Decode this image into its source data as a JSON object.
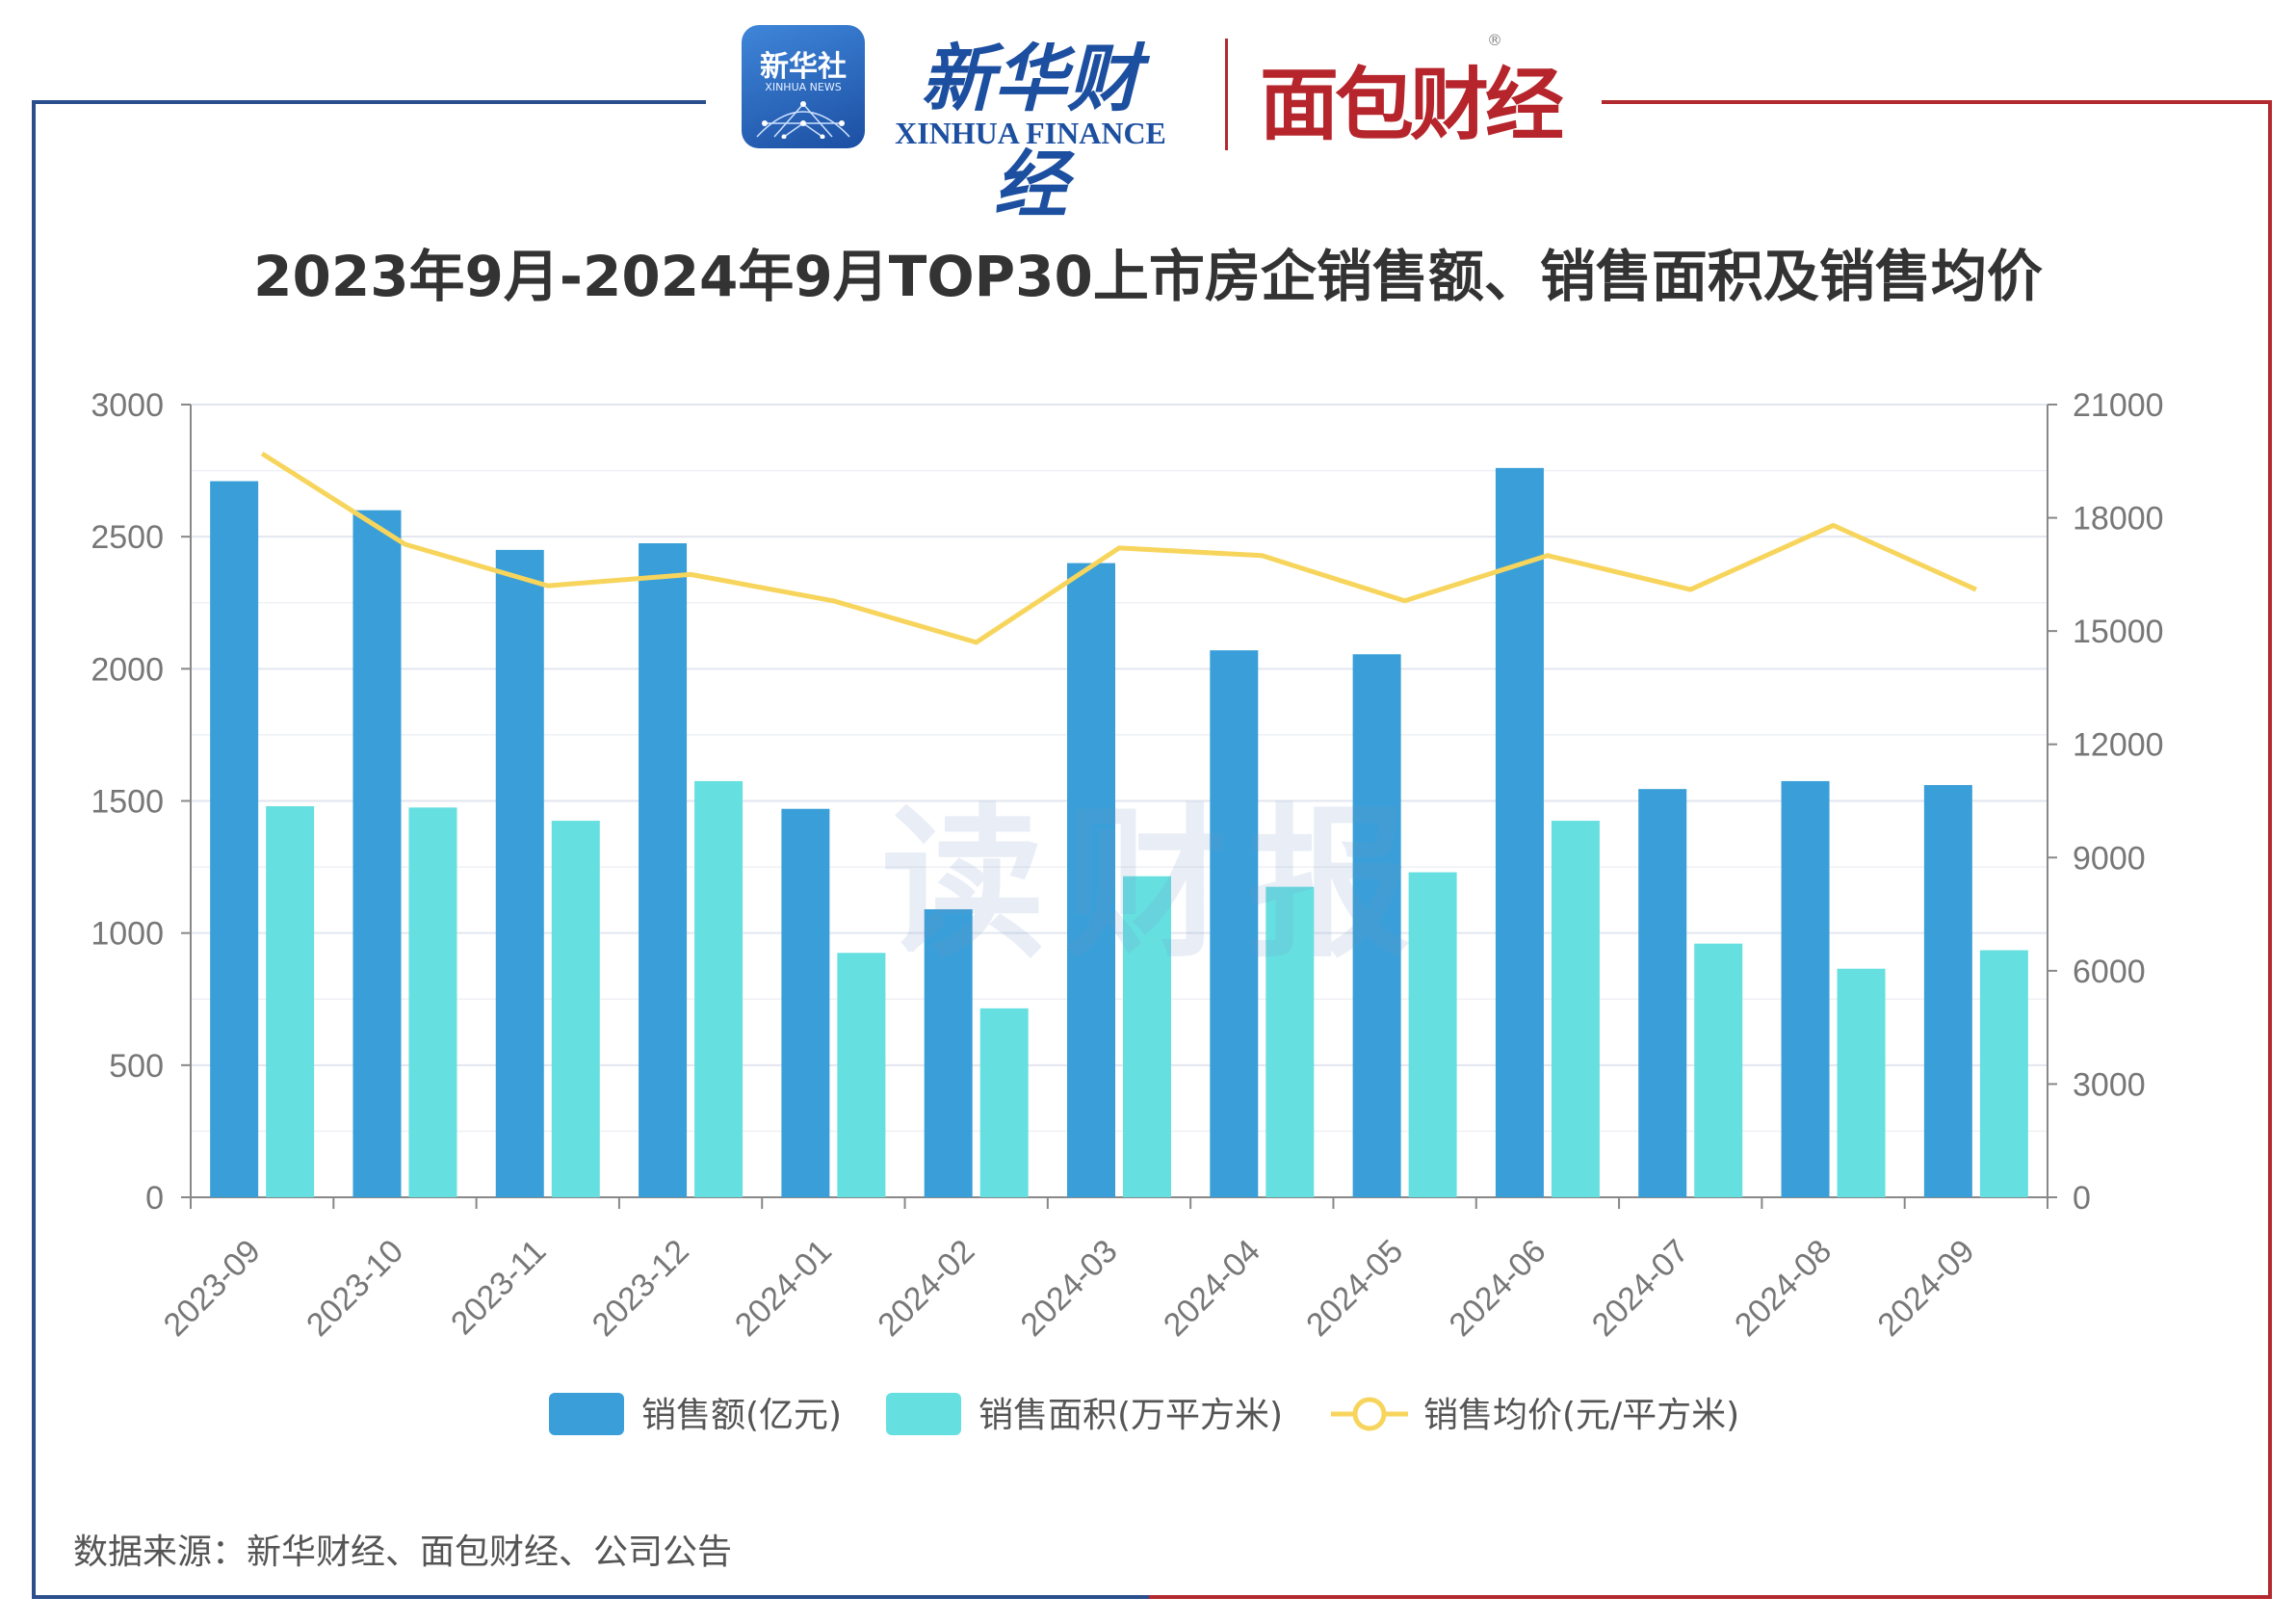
{
  "header": {
    "xinhua_badge": "新华社",
    "xinhua_badge_sub": "XINHUA NEWS",
    "xinhua_name": "新华财经",
    "xinhua_en": "XINHUA FINANCE",
    "mianbao_name": "面包财经",
    "registered_mark": "®"
  },
  "watermark": "读财报",
  "source": "数据来源：新华财经、面包财经、公司公告",
  "colors": {
    "sales_amount": "#3a9fd8",
    "sales_area": "#66dfe0",
    "avg_price": "#f7d55c",
    "frame_blue": "#2b4e8c",
    "frame_red": "#b22a2f"
  },
  "chart_data": {
    "type": "bar",
    "title": "2023年9月-2024年9月TOP30上市房企销售额、销售面积及销售均价",
    "categories": [
      "2023-09",
      "2023-10",
      "2023-11",
      "2023-12",
      "2024-01",
      "2024-02",
      "2024-03",
      "2024-04",
      "2024-05",
      "2024-06",
      "2024-07",
      "2024-08",
      "2024-09"
    ],
    "series": [
      {
        "name": "销售额(亿元)",
        "type": "bar",
        "axis": "left",
        "values": [
          2710,
          2600,
          2450,
          2475,
          1470,
          1090,
          2400,
          2070,
          2055,
          2760,
          1545,
          1575,
          1560
        ]
      },
      {
        "name": "销售面积(万平方米)",
        "type": "bar",
        "axis": "left",
        "values": [
          1480,
          1475,
          1425,
          1575,
          925,
          715,
          1215,
          1175,
          1230,
          1425,
          960,
          865,
          935
        ]
      },
      {
        "name": "销售均价(元/平方米)",
        "type": "line",
        "axis": "right",
        "values": [
          19700,
          17300,
          16200,
          16500,
          15800,
          14700,
          17200,
          17000,
          15800,
          17000,
          16100,
          17800,
          16100
        ]
      }
    ],
    "y_left": {
      "range": [
        0,
        3000
      ],
      "ticks": [
        "0",
        "500",
        "1000",
        "1500",
        "2000",
        "2500",
        "3000"
      ]
    },
    "y_right": {
      "range": [
        0,
        21000
      ],
      "ticks": [
        "0",
        "3000",
        "6000",
        "9000",
        "12000",
        "15000",
        "18000",
        "21000"
      ]
    },
    "grid": true,
    "legend_position": "bottom"
  }
}
